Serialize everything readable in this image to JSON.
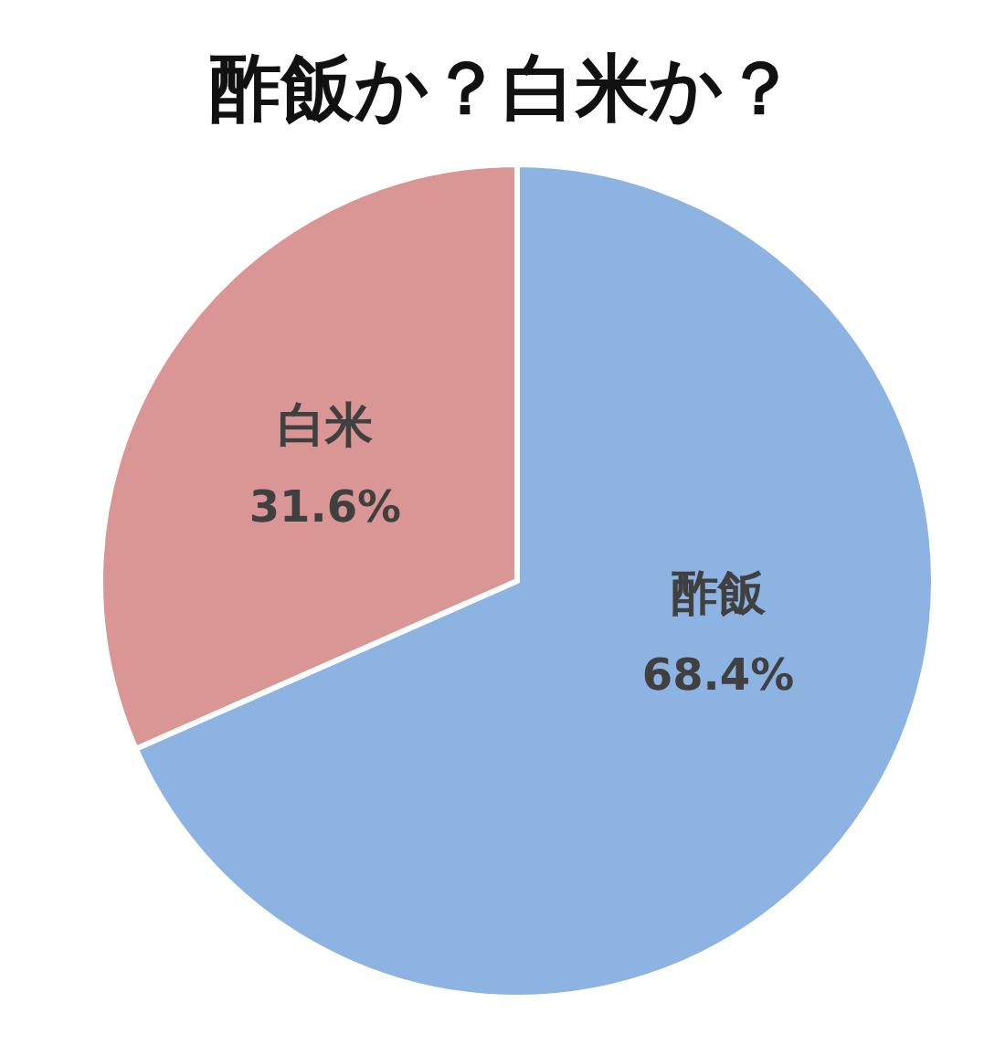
{
  "chart_data": {
    "type": "pie",
    "title": "酢飯か？白米か？",
    "categories": [
      "酢飯",
      "白米"
    ],
    "values": [
      68.4,
      31.6
    ],
    "colors": [
      "#8db3e2",
      "#d99694"
    ],
    "value_labels": [
      "68.4%",
      "31.6%"
    ]
  }
}
